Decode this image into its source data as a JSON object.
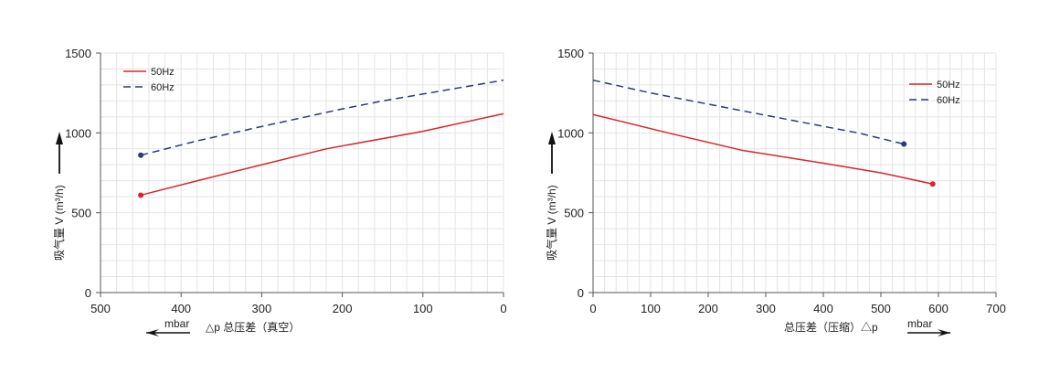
{
  "chart_data": [
    {
      "type": "line",
      "xlim": [
        500,
        0
      ],
      "x_reversed": true,
      "ylim": [
        0,
        1500
      ],
      "xticks": [
        "500",
        "400",
        "300",
        "200",
        "100",
        "0"
      ],
      "yticks": [
        "0",
        "500",
        "1000",
        "1500"
      ],
      "xlabel": "△p 总压差（真空）",
      "xunit": "mbar",
      "ylabel": "吸气量 V (m³/h)",
      "grid": true,
      "legend": "top-left",
      "series": [
        {
          "name": "50Hz",
          "color": "#d9262b",
          "dash": false,
          "x": [
            450,
            380,
            300,
            220,
            100,
            0
          ],
          "y": [
            610,
            700,
            800,
            900,
            1010,
            1120
          ]
        },
        {
          "name": "60Hz",
          "color": "#2a3a78",
          "dash": true,
          "x": [
            450,
            380,
            300,
            200,
            150,
            0
          ],
          "y": [
            860,
            950,
            1040,
            1150,
            1200,
            1330
          ]
        }
      ]
    },
    {
      "type": "line",
      "xlim": [
        0,
        700
      ],
      "ylim": [
        0,
        1500
      ],
      "xticks": [
        "0",
        "100",
        "200",
        "300",
        "400",
        "500",
        "600",
        "700"
      ],
      "yticks": [
        "0",
        "500",
        "1000",
        "1500"
      ],
      "xlabel": "总压差（压缩）△p",
      "xunit": "mbar",
      "ylabel": "吸气量 V (m³/h)",
      "grid": true,
      "legend": "top-right",
      "series": [
        {
          "name": "50Hz",
          "color": "#d9262b",
          "dash": false,
          "x": [
            0,
            130,
            260,
            400,
            500,
            590
          ],
          "y": [
            1115,
            1000,
            890,
            810,
            750,
            680
          ]
        },
        {
          "name": "60Hz",
          "color": "#2a3a78",
          "dash": true,
          "x": [
            0,
            100,
            200,
            300,
            460,
            540
          ],
          "y": [
            1330,
            1250,
            1180,
            1110,
            1000,
            930
          ]
        }
      ]
    }
  ]
}
